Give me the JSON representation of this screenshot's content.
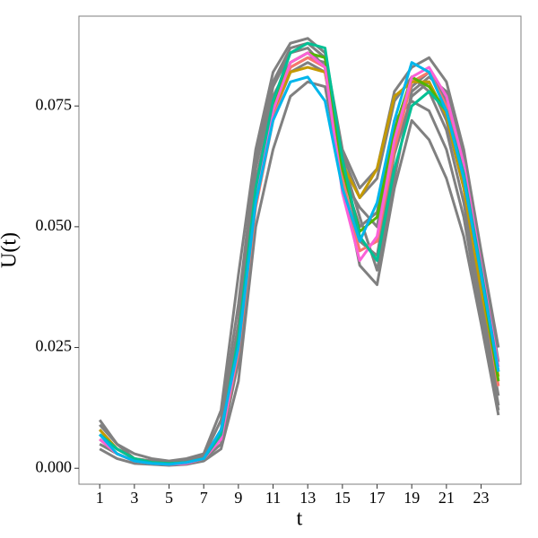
{
  "chart_data": {
    "type": "line",
    "xlabel": "t",
    "ylabel": "U(t)",
    "x": [
      1,
      2,
      3,
      4,
      5,
      6,
      7,
      8,
      9,
      10,
      11,
      12,
      13,
      14,
      15,
      16,
      17,
      18,
      19,
      20,
      21,
      22,
      23,
      24
    ],
    "xlim": [
      -0.2,
      25.3
    ],
    "xticks": [
      1,
      3,
      5,
      7,
      9,
      11,
      13,
      15,
      17,
      19,
      21,
      23
    ],
    "ylim": [
      -0.0033,
      0.0936
    ],
    "yticks": [
      {
        "value": 0,
        "label": "0.000"
      },
      {
        "value": 0.025,
        "label": "0.025"
      },
      {
        "value": 0.05,
        "label": "0.050"
      },
      {
        "value": 0.075,
        "label": "0.075"
      }
    ],
    "grid": false,
    "series": [
      {
        "color": "#808080",
        "values": [
          0.01,
          0.005,
          0.003,
          0.002,
          0.0015,
          0.002,
          0.003,
          0.012,
          0.04,
          0.066,
          0.082,
          0.088,
          0.089,
          0.086,
          0.066,
          0.058,
          0.062,
          0.078,
          0.083,
          0.085,
          0.08,
          0.066,
          0.045,
          0.025
        ]
      },
      {
        "color": "#808080",
        "values": [
          0.004,
          0.002,
          0.001,
          0.0008,
          0.0006,
          0.0008,
          0.0015,
          0.004,
          0.018,
          0.05,
          0.066,
          0.077,
          0.08,
          0.079,
          0.06,
          0.042,
          0.038,
          0.058,
          0.072,
          0.068,
          0.06,
          0.048,
          0.03,
          0.011
        ]
      },
      {
        "color": "#808080",
        "values": [
          0.008,
          0.004,
          0.002,
          0.0015,
          0.001,
          0.0012,
          0.002,
          0.008,
          0.03,
          0.062,
          0.079,
          0.086,
          0.087,
          0.083,
          0.06,
          0.054,
          0.05,
          0.07,
          0.079,
          0.082,
          0.076,
          0.062,
          0.042,
          0.02
        ]
      },
      {
        "color": "#808080",
        "values": [
          0.006,
          0.003,
          0.0015,
          0.001,
          0.0008,
          0.001,
          0.002,
          0.006,
          0.025,
          0.057,
          0.075,
          0.083,
          0.085,
          0.084,
          0.063,
          0.047,
          0.044,
          0.065,
          0.077,
          0.08,
          0.072,
          0.058,
          0.036,
          0.015
        ]
      },
      {
        "color": "#808080",
        "values": [
          0.009,
          0.005,
          0.002,
          0.0015,
          0.001,
          0.0015,
          0.0025,
          0.01,
          0.034,
          0.064,
          0.08,
          0.087,
          0.088,
          0.085,
          0.065,
          0.056,
          0.06,
          0.076,
          0.081,
          0.078,
          0.07,
          0.055,
          0.034,
          0.013
        ]
      },
      {
        "color": "#808080",
        "values": [
          0.005,
          0.003,
          0.0015,
          0.001,
          0.0008,
          0.001,
          0.0018,
          0.005,
          0.022,
          0.055,
          0.073,
          0.082,
          0.084,
          0.082,
          0.061,
          0.05,
          0.053,
          0.072,
          0.076,
          0.074,
          0.066,
          0.052,
          0.031,
          0.012
        ]
      },
      {
        "color": "#808080",
        "values": [
          0.007,
          0.004,
          0.002,
          0.0012,
          0.001,
          0.0012,
          0.0022,
          0.007,
          0.028,
          0.059,
          0.077,
          0.084,
          0.086,
          0.083,
          0.064,
          0.052,
          0.041,
          0.06,
          0.078,
          0.081,
          0.078,
          0.064,
          0.044,
          0.022
        ]
      },
      {
        "color": "#f8766d",
        "values": [
          0.006,
          0.003,
          0.0015,
          0.001,
          0.0008,
          0.001,
          0.002,
          0.006,
          0.024,
          0.054,
          0.072,
          0.083,
          0.085,
          0.083,
          0.06,
          0.045,
          0.047,
          0.066,
          0.08,
          0.082,
          0.075,
          0.06,
          0.039,
          0.017
        ]
      },
      {
        "color": "#c49a00",
        "values": [
          0.008,
          0.004,
          0.002,
          0.0012,
          0.001,
          0.0012,
          0.002,
          0.007,
          0.027,
          0.058,
          0.074,
          0.082,
          0.083,
          0.082,
          0.063,
          0.056,
          0.062,
          0.077,
          0.08,
          0.08,
          0.073,
          0.058,
          0.037,
          0.019
        ]
      },
      {
        "color": "#53b400",
        "values": [
          0.007,
          0.004,
          0.002,
          0.0012,
          0.001,
          0.0012,
          0.002,
          0.007,
          0.026,
          0.057,
          0.075,
          0.084,
          0.086,
          0.085,
          0.062,
          0.049,
          0.052,
          0.07,
          0.081,
          0.079,
          0.074,
          0.06,
          0.04,
          0.018
        ]
      },
      {
        "color": "#fb61d7",
        "values": [
          0.006,
          0.003,
          0.0015,
          0.001,
          0.0008,
          0.001,
          0.002,
          0.006,
          0.025,
          0.056,
          0.074,
          0.084,
          0.086,
          0.083,
          0.057,
          0.043,
          0.048,
          0.068,
          0.081,
          0.083,
          0.077,
          0.063,
          0.042,
          0.021
        ]
      },
      {
        "color": "#00c094",
        "values": [
          0.007,
          0.004,
          0.002,
          0.0012,
          0.001,
          0.0012,
          0.002,
          0.007,
          0.027,
          0.058,
          0.076,
          0.086,
          0.088,
          0.087,
          0.064,
          0.048,
          0.043,
          0.062,
          0.075,
          0.078,
          0.074,
          0.061,
          0.041,
          0.02
        ]
      },
      {
        "color": "#00b6eb",
        "values": [
          0.007,
          0.003,
          0.0015,
          0.001,
          0.0008,
          0.0012,
          0.002,
          0.008,
          0.025,
          0.055,
          0.072,
          0.08,
          0.081,
          0.076,
          0.058,
          0.047,
          0.055,
          0.072,
          0.084,
          0.082,
          0.074,
          0.06,
          0.04,
          0.02
        ]
      }
    ]
  }
}
